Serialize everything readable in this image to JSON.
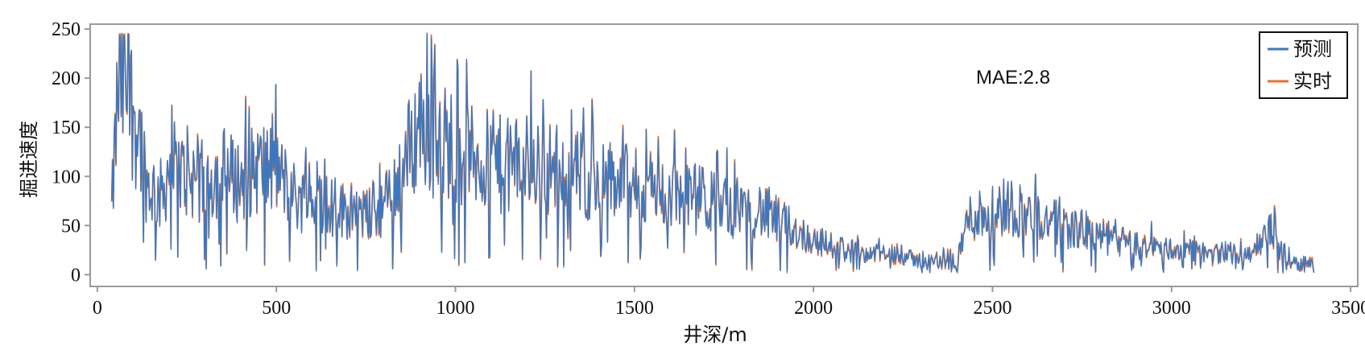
{
  "chart_data": {
    "type": "line",
    "title": "",
    "xlabel": "井深/m",
    "ylabel": "掘进速度",
    "xlim": [
      -20,
      3520
    ],
    "ylim": [
      -12,
      255
    ],
    "x_ticks": [
      0,
      500,
      1000,
      1500,
      2000,
      2500,
      3000,
      3500
    ],
    "y_ticks": [
      0,
      50,
      100,
      150,
      200,
      250
    ],
    "grid": false,
    "legend_position": "top-right",
    "annotation": "MAE:2.8",
    "series": [
      {
        "name": "预测",
        "color": "#3a78c2",
        "x": [
          40,
          60,
          80,
          100,
          120,
          140,
          160,
          180,
          200,
          250,
          300,
          350,
          400,
          450,
          500,
          550,
          600,
          650,
          700,
          750,
          800,
          850,
          900,
          950,
          1000,
          1050,
          1100,
          1150,
          1200,
          1250,
          1300,
          1350,
          1400,
          1450,
          1500,
          1550,
          1600,
          1650,
          1700,
          1750,
          1800,
          1850,
          1900,
          1950,
          2000,
          2050,
          2100,
          2150,
          2200,
          2250,
          2300,
          2350,
          2400,
          2430,
          2450,
          2500,
          2550,
          2600,
          2650,
          2700,
          2750,
          2800,
          2850,
          2900,
          2950,
          3000,
          3050,
          3100,
          3150,
          3200,
          3250,
          3280,
          3300,
          3350,
          3400
        ],
        "values": [
          70,
          190,
          180,
          165,
          140,
          95,
          85,
          80,
          105,
          100,
          95,
          100,
          95,
          110,
          105,
          80,
          75,
          70,
          65,
          60,
          70,
          100,
          150,
          140,
          130,
          120,
          115,
          110,
          115,
          110,
          105,
          100,
          95,
          95,
          90,
          85,
          80,
          80,
          75,
          70,
          70,
          65,
          55,
          45,
          35,
          30,
          25,
          22,
          20,
          18,
          15,
          12,
          12,
          55,
          60,
          65,
          70,
          60,
          55,
          50,
          45,
          40,
          35,
          30,
          28,
          25,
          25,
          22,
          22,
          20,
          30,
          45,
          25,
          12,
          10
        ]
      },
      {
        "name": "实时",
        "color": "#ec6f2a",
        "x": [
          40,
          60,
          80,
          100,
          120,
          140,
          160,
          180,
          200,
          250,
          300,
          350,
          400,
          450,
          500,
          550,
          600,
          650,
          700,
          750,
          800,
          850,
          900,
          950,
          1000,
          1050,
          1100,
          1150,
          1200,
          1250,
          1300,
          1350,
          1400,
          1450,
          1500,
          1550,
          1600,
          1650,
          1700,
          1750,
          1800,
          1850,
          1900,
          1950,
          2000,
          2050,
          2100,
          2150,
          2200,
          2250,
          2300,
          2350,
          2400,
          2430,
          2450,
          2500,
          2550,
          2600,
          2650,
          2700,
          2750,
          2800,
          2850,
          2900,
          2950,
          3000,
          3050,
          3100,
          3150,
          3200,
          3250,
          3280,
          3300,
          3350,
          3400
        ],
        "values": [
          65,
          200,
          185,
          170,
          140,
          90,
          85,
          80,
          110,
          100,
          95,
          105,
          95,
          110,
          105,
          80,
          75,
          70,
          65,
          60,
          70,
          105,
          155,
          140,
          130,
          120,
          115,
          110,
          115,
          110,
          105,
          100,
          95,
          95,
          90,
          85,
          80,
          80,
          75,
          70,
          70,
          65,
          55,
          45,
          35,
          30,
          25,
          22,
          20,
          18,
          15,
          12,
          12,
          55,
          60,
          65,
          70,
          60,
          55,
          50,
          45,
          40,
          35,
          30,
          28,
          25,
          25,
          22,
          22,
          20,
          30,
          50,
          25,
          12,
          10
        ]
      }
    ]
  }
}
